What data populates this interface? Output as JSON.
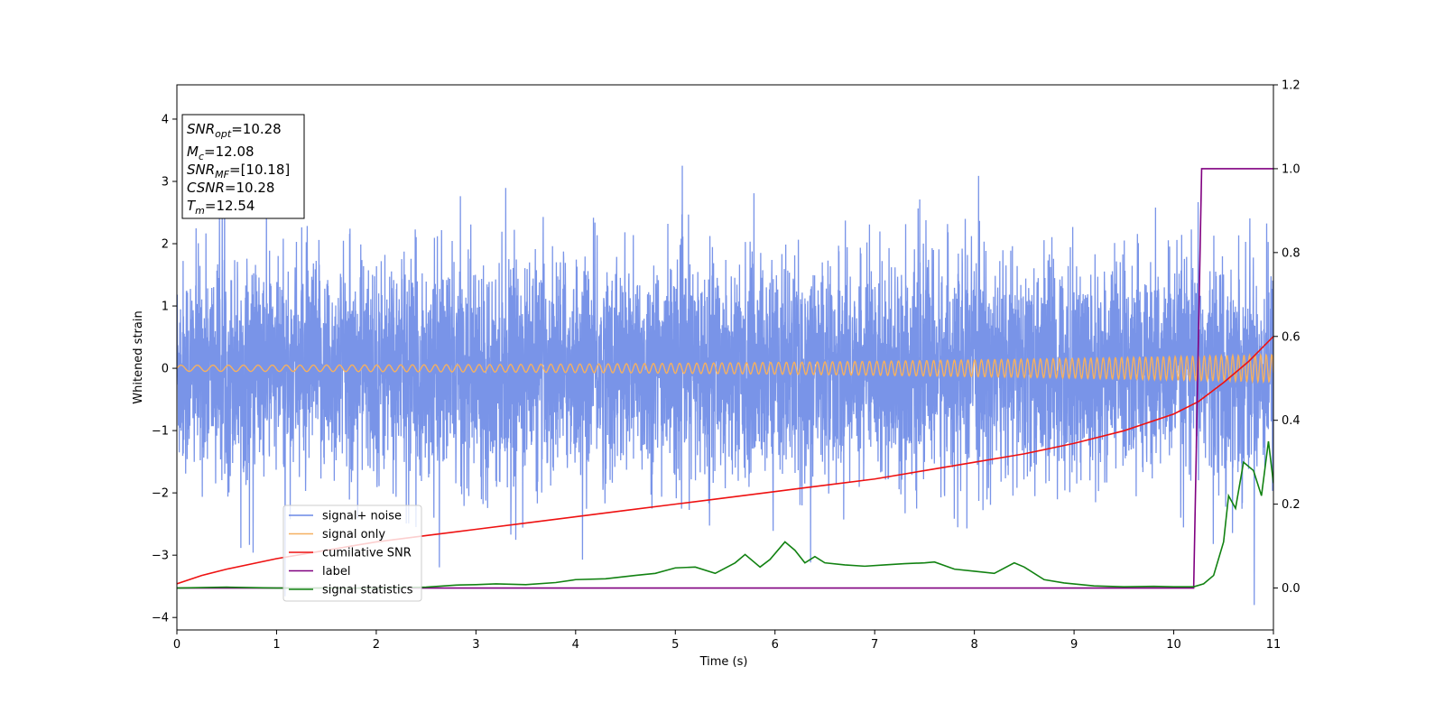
{
  "chart_data": {
    "type": "line",
    "xlabel": "Time (s)",
    "ylabel": "Whitened strain",
    "xlim": [
      0,
      11
    ],
    "ylim": [
      -4.2,
      4.55
    ],
    "y2lim": [
      -0.1,
      1.2
    ],
    "x_ticks": [
      "0",
      "1",
      "2",
      "3",
      "4",
      "5",
      "6",
      "7",
      "8",
      "9",
      "10",
      "11"
    ],
    "y_ticks": [
      {
        "v": 4,
        "label": "4"
      },
      {
        "v": 3,
        "label": "3"
      },
      {
        "v": 2,
        "label": "2"
      },
      {
        "v": 1,
        "label": "1"
      },
      {
        "v": 0,
        "label": "0"
      },
      {
        "v": -1,
        "label": "−1"
      },
      {
        "v": -2,
        "label": "−2"
      },
      {
        "v": -3,
        "label": "−3"
      },
      {
        "v": -4,
        "label": "−4"
      }
    ],
    "y2_ticks": [
      {
        "v": 1.2,
        "label": "1.2"
      },
      {
        "v": 1.0,
        "label": "1.0"
      },
      {
        "v": 0.8,
        "label": "0.8"
      },
      {
        "v": 0.6,
        "label": "0.6"
      },
      {
        "v": 0.4,
        "label": "0.4"
      },
      {
        "v": 0.2,
        "label": "0.2"
      },
      {
        "v": 0.0,
        "label": "0.0"
      }
    ],
    "grid": false,
    "legend_position": "lower-left",
    "series": [
      {
        "name": "signal+ noise",
        "axis": "left",
        "color": "#6a88e6",
        "style": "noise",
        "amplitude_std": 0.85,
        "range": [
          -3.8,
          4.2
        ]
      },
      {
        "name": "signal only",
        "axis": "left",
        "color": "#f5b060",
        "style": "chirp",
        "amplitude_start": 0.05,
        "amplitude_end": 0.22
      },
      {
        "name": "cumilative SNR",
        "axis": "right",
        "color": "#ee1111",
        "x": [
          0,
          0.25,
          0.5,
          1,
          1.5,
          2,
          2.5,
          3,
          3.5,
          4,
          4.5,
          5,
          5.5,
          6,
          6.5,
          7,
          7.5,
          8,
          8.5,
          9,
          9.5,
          10,
          10.25,
          10.5,
          10.75,
          11
        ],
        "y": [
          0.01,
          0.03,
          0.045,
          0.07,
          0.09,
          0.11,
          0.125,
          0.14,
          0.155,
          0.17,
          0.185,
          0.2,
          0.215,
          0.23,
          0.245,
          0.26,
          0.28,
          0.3,
          0.32,
          0.345,
          0.375,
          0.415,
          0.445,
          0.49,
          0.54,
          0.6
        ]
      },
      {
        "name": "label",
        "axis": "right",
        "color": "#800080",
        "x": [
          0,
          10.2,
          10.28,
          11
        ],
        "y": [
          0,
          0,
          1,
          1
        ]
      },
      {
        "name": "signal statistics",
        "axis": "right",
        "color": "#128212",
        "x": [
          0,
          0.5,
          1,
          1.5,
          2,
          2.5,
          2.8,
          3.0,
          3.2,
          3.5,
          3.8,
          4.0,
          4.3,
          4.6,
          4.8,
          5.0,
          5.2,
          5.4,
          5.6,
          5.7,
          5.85,
          5.95,
          6.1,
          6.2,
          6.3,
          6.4,
          6.5,
          6.7,
          6.9,
          7.1,
          7.3,
          7.5,
          7.6,
          7.8,
          8.0,
          8.2,
          8.4,
          8.5,
          8.7,
          8.9,
          9.2,
          9.5,
          9.8,
          10.0,
          10.2,
          10.3,
          10.4,
          10.5,
          10.55,
          10.62,
          10.7,
          10.8,
          10.88,
          10.95,
          11.0
        ],
        "y": [
          0,
          0.002,
          0,
          0,
          0,
          0.002,
          0.007,
          0.008,
          0.01,
          0.008,
          0.013,
          0.02,
          0.022,
          0.03,
          0.035,
          0.048,
          0.05,
          0.035,
          0.06,
          0.08,
          0.05,
          0.068,
          0.11,
          0.09,
          0.06,
          0.075,
          0.06,
          0.055,
          0.052,
          0.055,
          0.058,
          0.06,
          0.062,
          0.045,
          0.04,
          0.035,
          0.06,
          0.05,
          0.02,
          0.012,
          0.005,
          0.003,
          0.004,
          0.003,
          0.003,
          0.01,
          0.03,
          0.11,
          0.22,
          0.19,
          0.3,
          0.28,
          0.22,
          0.35,
          0.25
        ]
      }
    ]
  },
  "info_box": {
    "snr_opt": {
      "main": "SNR",
      "sub": "opt",
      "value": "=10.28"
    },
    "mc": {
      "main": "M",
      "sub": "c",
      "value": "=12.08"
    },
    "snr_mf": {
      "main": "SNR",
      "sub": "MF",
      "value": "=[10.18]"
    },
    "csnr": {
      "main": "CSNR",
      "value": "=10.28"
    },
    "tm": {
      "main": "T",
      "sub": "m",
      "value": "=12.54"
    }
  }
}
